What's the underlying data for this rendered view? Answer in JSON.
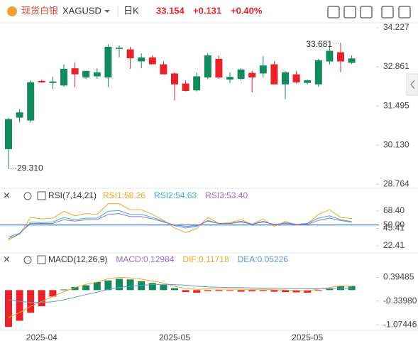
{
  "header": {
    "name": "现货白银",
    "symbol": "XAGUSD",
    "period": "日K",
    "price": "33.154",
    "change": "+0.131",
    "change_pct": "+0.40%"
  },
  "chart_data": [
    {
      "type": "candlestick",
      "up_color": "#138a5c",
      "down_color": "#e8212b",
      "open": [
        29.99,
        31.09,
        30.99,
        32.37,
        32.3,
        32.21,
        32.81,
        32.49,
        32.53,
        32.49,
        33.49,
        33.47,
        33.05,
        33.19,
        32.95,
        32.63,
        32.28,
        32.04,
        32.49,
        33.14,
        32.42,
        32.44,
        32.65,
        32.63,
        32.95,
        32.25,
        32.6,
        32.3,
        32.25,
        33.05,
        33.37,
        33.0
      ],
      "high": [
        31.09,
        31.39,
        32.39,
        32.42,
        32.51,
        32.95,
        33.02,
        32.72,
        32.81,
        33.65,
        33.61,
        33.56,
        33.33,
        33.26,
        33.05,
        32.67,
        32.39,
        32.67,
        33.33,
        33.26,
        32.67,
        32.81,
        32.72,
        33.23,
        33.05,
        32.72,
        32.72,
        32.42,
        33.14,
        33.56,
        33.681,
        33.26
      ],
      "low": [
        29.31,
        30.92,
        30.92,
        32.3,
        32.09,
        32.16,
        32.14,
        32.44,
        32.44,
        32.16,
        33.19,
        32.79,
        32.81,
        32.95,
        32.6,
        31.69,
        32.0,
        32.0,
        32.44,
        32.44,
        32.3,
        32.39,
        31.97,
        32.49,
        32.25,
        31.74,
        32.28,
        32.25,
        32.16,
        32.95,
        32.67,
        32.95
      ],
      "close": [
        31.04,
        31.27,
        32.32,
        32.32,
        32.35,
        32.79,
        32.6,
        32.72,
        32.67,
        33.56,
        33.53,
        33.16,
        33.19,
        32.95,
        32.6,
        32.25,
        32.02,
        32.53,
        33.26,
        32.49,
        32.51,
        32.77,
        32.49,
        32.91,
        32.25,
        32.67,
        32.32,
        32.39,
        33.09,
        33.42,
        33.05,
        33.154
      ],
      "max_label": "33.681",
      "min_label": "29.310",
      "ylim": [
        28.7,
        34.3
      ],
      "yticks": [
        34.227,
        32.861,
        31.495,
        {
          "value": 30.13,
          "label": "30.130"
        },
        28.764
      ]
    },
    {
      "type": "line",
      "title": "RSI(7,14,21)",
      "series": [
        {
          "name": "RSI1:58.26",
          "color": "#f5a623",
          "values": [
            30,
            38,
            60,
            58,
            59,
            68,
            62,
            65,
            64,
            78,
            78,
            70,
            70,
            64,
            56,
            46,
            40,
            45,
            60,
            52,
            53,
            57,
            51,
            58,
            48,
            55,
            50,
            52,
            64,
            70,
            60,
            58.26
          ]
        },
        {
          "name": "RSI2:54.63",
          "color": "#35b6c9",
          "values": [
            32,
            38,
            54,
            53,
            54,
            60,
            57,
            59,
            59,
            68,
            69,
            64,
            64,
            60,
            55,
            49,
            46,
            48,
            56,
            52,
            52,
            55,
            51,
            55,
            50,
            53,
            51,
            52,
            59,
            62,
            57,
            54.63
          ]
        },
        {
          "name": "RSI3:53.40",
          "color": "#9b6bd6",
          "values": [
            34,
            39,
            52,
            52,
            52,
            57,
            55,
            57,
            57,
            64,
            65,
            61,
            61,
            58,
            54,
            50,
            48,
            49,
            55,
            52,
            52,
            54,
            51,
            54,
            51,
            52,
            51,
            51,
            56,
            59,
            56,
            53.4
          ]
        }
      ],
      "reference_line": {
        "value": 50,
        "label": "50.00",
        "color": "#2f7de1"
      },
      "ylim": [
        14,
        95.6
      ],
      "yticks": [
        {
          "value": 68.4,
          "label": "68.40"
        },
        45.41,
        22.41
      ]
    },
    {
      "type": "macd",
      "title": "MACD(12,26,9)",
      "up_color": "#138a5c",
      "down_color": "#e8212b",
      "histogram": {
        "name": "MACD:0.12984",
        "color": "#9b6bd6",
        "values": [
          -1.14,
          -0.95,
          -0.7,
          -0.5,
          -0.2,
          0.02,
          0.1,
          0.15,
          0.25,
          0.3,
          0.35,
          0.33,
          0.28,
          0.22,
          0.16,
          0.06,
          -0.06,
          -0.08,
          -0.03,
          -0.03,
          -0.02,
          -0.05,
          -0.04,
          -0.03,
          -0.05,
          -0.06,
          -0.07,
          -0.08,
          -0.02,
          0.05,
          0.13,
          0.12984
        ]
      },
      "series": [
        {
          "name": "DIF:0.11718",
          "color": "#f5a623",
          "values": [
            -0.85,
            -0.7,
            -0.5,
            -0.35,
            -0.2,
            -0.05,
            0.08,
            0.18,
            0.25,
            0.35,
            0.4,
            0.38,
            0.34,
            0.28,
            0.22,
            0.12,
            0.05,
            0.02,
            0.04,
            0.03,
            0.03,
            0.03,
            0.02,
            0.03,
            0.01,
            0.0,
            -0.01,
            -0.02,
            0.03,
            0.08,
            0.13,
            0.11718
          ]
        },
        {
          "name": "DEA:0.05226",
          "color": "#5b9bd5",
          "values": [
            -0.3,
            -0.35,
            -0.38,
            -0.38,
            -0.36,
            -0.3,
            -0.22,
            -0.14,
            -0.06,
            0.02,
            0.08,
            0.12,
            0.15,
            0.17,
            0.18,
            0.17,
            0.15,
            0.12,
            0.1,
            0.09,
            0.08,
            0.08,
            0.07,
            0.06,
            0.06,
            0.05,
            0.05,
            0.04,
            0.04,
            0.05,
            0.06,
            0.05226
          ]
        }
      ],
      "ylim": [
        -1.247,
        1.064
      ],
      "yticks": [
        0.39485,
        {
          "value": -0.3398,
          "label": "-0.33980"
        },
        -1.07446
      ],
      "categories": [
        null,
        null,
        null,
        "2025-04",
        null,
        null,
        null,
        null,
        null,
        null,
        null,
        null,
        null,
        null,
        null,
        "2025-05",
        null,
        null,
        null,
        null,
        null,
        null,
        null,
        null,
        null,
        null,
        null,
        "2025-05",
        null,
        null,
        null,
        null
      ]
    }
  ]
}
